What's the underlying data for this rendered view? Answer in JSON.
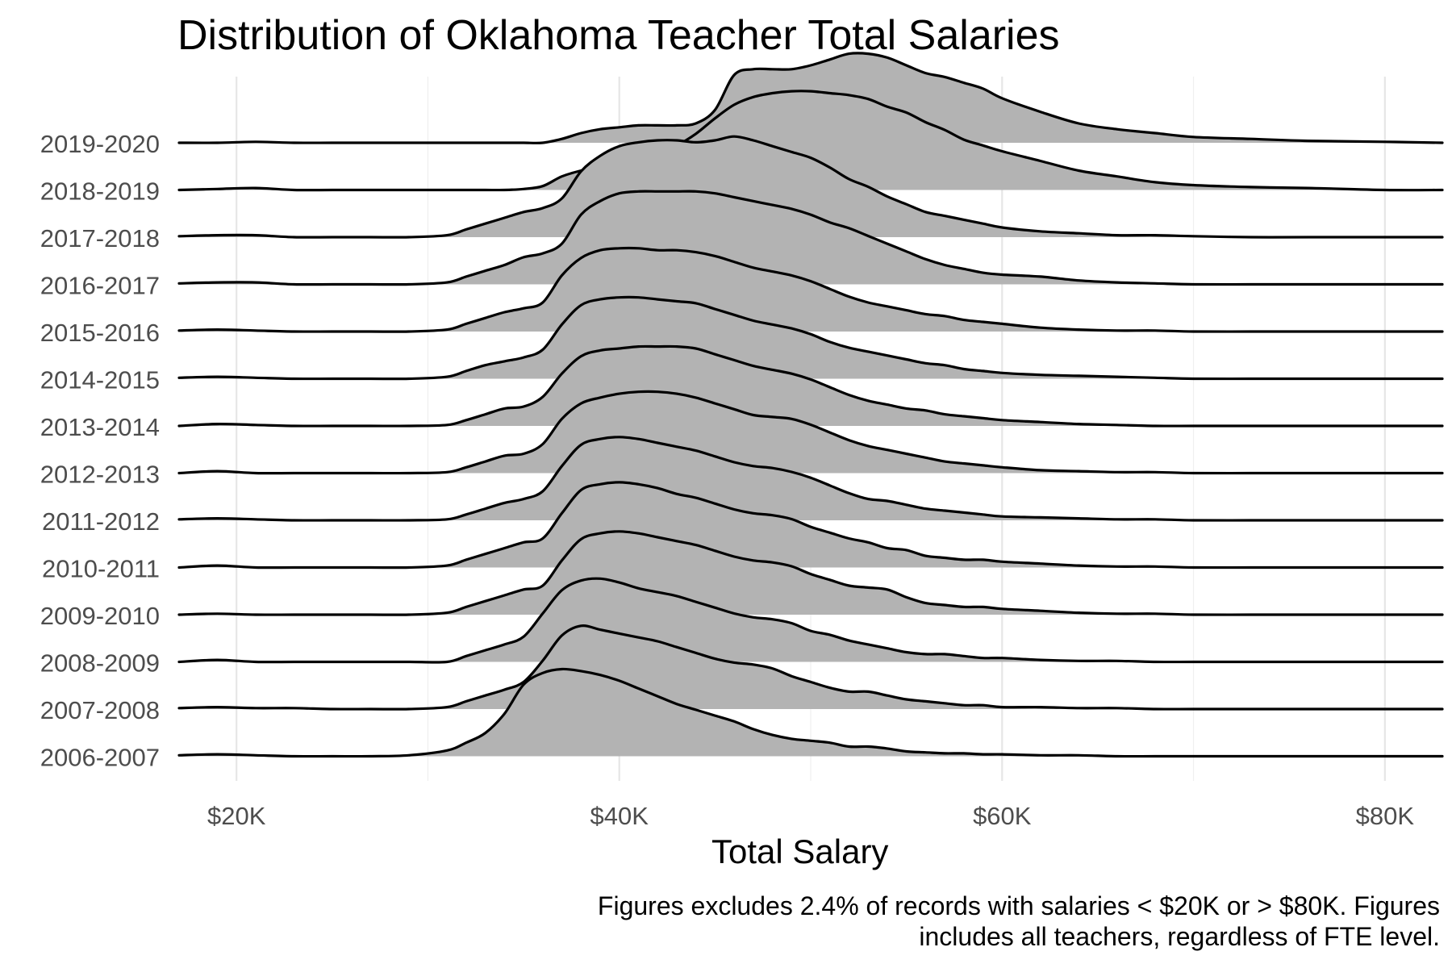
{
  "chart_data": {
    "type": "ridgeline",
    "title": "Distribution of Oklahoma Teacher Total Salaries",
    "xlabel": "Total Salary",
    "ylabel": "",
    "caption_lines": [
      "Figures excludes 2.4% of records with salaries < $20K or > $80K. Figures",
      "includes all teachers, regardless of FTE level."
    ],
    "xlim": [
      17000,
      83000
    ],
    "x_ticks": [
      {
        "value": 20000,
        "label": "$20K"
      },
      {
        "value": 40000,
        "label": "$40K"
      },
      {
        "value": 60000,
        "label": "$60K"
      },
      {
        "value": 80000,
        "label": "$80K"
      }
    ],
    "grid": true,
    "fill_color": "#b3b3b3",
    "line_color": "#000000",
    "density_scale": "relative (tallest ridge = 1.0)",
    "x": [
      17000,
      19000,
      21000,
      23000,
      25000,
      27000,
      29000,
      31000,
      32000,
      33000,
      34000,
      35000,
      36000,
      37000,
      38000,
      39000,
      40000,
      41000,
      42000,
      43000,
      44000,
      45000,
      46000,
      47000,
      48000,
      49000,
      50000,
      51000,
      52000,
      53000,
      54000,
      55000,
      56000,
      57000,
      58000,
      59000,
      60000,
      62000,
      64000,
      66000,
      68000,
      70000,
      73000,
      76000,
      80000,
      83000
    ],
    "series": [
      {
        "name": "2006-2007",
        "values": [
          0.01,
          0.02,
          0.01,
          0.0,
          0.0,
          0.0,
          0.01,
          0.06,
          0.14,
          0.24,
          0.44,
          0.74,
          0.86,
          0.9,
          0.88,
          0.84,
          0.78,
          0.7,
          0.62,
          0.54,
          0.48,
          0.42,
          0.36,
          0.28,
          0.22,
          0.18,
          0.16,
          0.14,
          0.1,
          0.1,
          0.08,
          0.05,
          0.04,
          0.03,
          0.03,
          0.02,
          0.02,
          0.01,
          0.01,
          0.0,
          0.0,
          0.0,
          0.0,
          0.0,
          0.0,
          0.0
        ]
      },
      {
        "name": "2007-2008",
        "values": [
          0.01,
          0.02,
          0.01,
          0.01,
          0.0,
          0.0,
          0.0,
          0.02,
          0.08,
          0.14,
          0.2,
          0.28,
          0.5,
          0.76,
          0.86,
          0.82,
          0.78,
          0.74,
          0.7,
          0.64,
          0.58,
          0.52,
          0.48,
          0.46,
          0.42,
          0.34,
          0.28,
          0.22,
          0.18,
          0.18,
          0.14,
          0.1,
          0.08,
          0.06,
          0.04,
          0.04,
          0.02,
          0.02,
          0.01,
          0.01,
          0.0,
          0.0,
          0.0,
          0.0,
          0.0,
          0.0
        ]
      },
      {
        "name": "2008-2009",
        "values": [
          0.0,
          0.02,
          0.0,
          0.0,
          0.0,
          0.0,
          0.0,
          0.0,
          0.06,
          0.12,
          0.18,
          0.26,
          0.5,
          0.74,
          0.84,
          0.86,
          0.82,
          0.76,
          0.72,
          0.68,
          0.62,
          0.56,
          0.5,
          0.46,
          0.44,
          0.4,
          0.32,
          0.28,
          0.22,
          0.18,
          0.14,
          0.1,
          0.08,
          0.08,
          0.06,
          0.04,
          0.04,
          0.02,
          0.01,
          0.01,
          0.0,
          0.0,
          0.0,
          0.0,
          0.0,
          0.0
        ]
      },
      {
        "name": "2009-2010",
        "values": [
          0.0,
          0.01,
          0.0,
          0.0,
          0.0,
          0.0,
          0.0,
          0.02,
          0.08,
          0.14,
          0.2,
          0.26,
          0.3,
          0.56,
          0.78,
          0.84,
          0.86,
          0.84,
          0.8,
          0.76,
          0.72,
          0.66,
          0.6,
          0.56,
          0.54,
          0.5,
          0.42,
          0.36,
          0.3,
          0.28,
          0.26,
          0.18,
          0.12,
          0.1,
          0.08,
          0.08,
          0.06,
          0.04,
          0.02,
          0.01,
          0.01,
          0.0,
          0.0,
          0.0,
          0.0,
          0.0
        ]
      },
      {
        "name": "2010-2011",
        "values": [
          0.0,
          0.02,
          0.0,
          0.0,
          0.0,
          0.0,
          0.0,
          0.02,
          0.08,
          0.14,
          0.2,
          0.26,
          0.3,
          0.56,
          0.8,
          0.86,
          0.88,
          0.86,
          0.82,
          0.76,
          0.72,
          0.66,
          0.6,
          0.56,
          0.54,
          0.5,
          0.42,
          0.36,
          0.3,
          0.26,
          0.2,
          0.18,
          0.12,
          0.1,
          0.08,
          0.08,
          0.06,
          0.04,
          0.02,
          0.01,
          0.01,
          0.0,
          0.0,
          0.0,
          0.0,
          0.0
        ]
      },
      {
        "name": "2011-2012",
        "values": [
          0.01,
          0.02,
          0.01,
          0.0,
          0.0,
          0.0,
          0.0,
          0.01,
          0.06,
          0.12,
          0.18,
          0.22,
          0.3,
          0.56,
          0.78,
          0.84,
          0.86,
          0.84,
          0.8,
          0.76,
          0.72,
          0.66,
          0.6,
          0.56,
          0.54,
          0.5,
          0.44,
          0.36,
          0.28,
          0.22,
          0.2,
          0.16,
          0.12,
          0.1,
          0.08,
          0.06,
          0.04,
          0.03,
          0.02,
          0.01,
          0.01,
          0.0,
          0.0,
          0.0,
          0.0,
          0.0
        ]
      },
      {
        "name": "2012-2013",
        "values": [
          0.0,
          0.02,
          0.0,
          0.0,
          0.0,
          0.0,
          0.0,
          0.01,
          0.06,
          0.12,
          0.18,
          0.2,
          0.3,
          0.56,
          0.72,
          0.78,
          0.82,
          0.84,
          0.84,
          0.82,
          0.78,
          0.72,
          0.66,
          0.6,
          0.58,
          0.56,
          0.5,
          0.42,
          0.34,
          0.28,
          0.24,
          0.2,
          0.16,
          0.12,
          0.1,
          0.08,
          0.06,
          0.03,
          0.02,
          0.01,
          0.01,
          0.0,
          0.0,
          0.0,
          0.0,
          0.0
        ]
      },
      {
        "name": "2013-2014",
        "values": [
          0.0,
          0.02,
          0.01,
          0.0,
          0.0,
          0.0,
          0.0,
          0.01,
          0.06,
          0.12,
          0.18,
          0.2,
          0.3,
          0.54,
          0.72,
          0.78,
          0.8,
          0.82,
          0.82,
          0.82,
          0.8,
          0.74,
          0.68,
          0.62,
          0.58,
          0.54,
          0.48,
          0.4,
          0.32,
          0.26,
          0.22,
          0.18,
          0.16,
          0.12,
          0.1,
          0.08,
          0.06,
          0.04,
          0.02,
          0.01,
          0.0,
          0.0,
          0.0,
          0.0,
          0.0,
          0.0
        ]
      },
      {
        "name": "2014-2015",
        "values": [
          0.01,
          0.02,
          0.01,
          0.0,
          0.0,
          0.0,
          0.0,
          0.02,
          0.08,
          0.14,
          0.18,
          0.22,
          0.3,
          0.56,
          0.76,
          0.82,
          0.84,
          0.84,
          0.82,
          0.8,
          0.78,
          0.72,
          0.66,
          0.6,
          0.56,
          0.52,
          0.46,
          0.38,
          0.32,
          0.28,
          0.24,
          0.2,
          0.16,
          0.14,
          0.1,
          0.08,
          0.06,
          0.04,
          0.03,
          0.02,
          0.01,
          0.0,
          0.0,
          0.0,
          0.0,
          0.0
        ]
      },
      {
        "name": "2015-2016",
        "values": [
          0.01,
          0.02,
          0.01,
          0.0,
          0.0,
          0.0,
          0.0,
          0.02,
          0.08,
          0.14,
          0.2,
          0.24,
          0.3,
          0.58,
          0.76,
          0.84,
          0.86,
          0.86,
          0.84,
          0.84,
          0.82,
          0.78,
          0.72,
          0.66,
          0.62,
          0.58,
          0.52,
          0.44,
          0.36,
          0.3,
          0.26,
          0.22,
          0.18,
          0.16,
          0.12,
          0.1,
          0.08,
          0.04,
          0.02,
          0.01,
          0.01,
          0.0,
          0.0,
          0.0,
          0.0,
          0.0
        ]
      },
      {
        "name": "2016-2017",
        "values": [
          0.01,
          0.02,
          0.02,
          0.0,
          0.0,
          0.0,
          0.0,
          0.02,
          0.08,
          0.14,
          0.2,
          0.28,
          0.32,
          0.42,
          0.72,
          0.86,
          0.94,
          0.96,
          0.96,
          0.96,
          0.96,
          0.94,
          0.9,
          0.86,
          0.82,
          0.78,
          0.72,
          0.64,
          0.58,
          0.5,
          0.42,
          0.34,
          0.26,
          0.2,
          0.16,
          0.12,
          0.1,
          0.08,
          0.04,
          0.02,
          0.01,
          0.0,
          0.0,
          0.0,
          0.0,
          0.0
        ]
      },
      {
        "name": "2017-2018",
        "values": [
          0.01,
          0.02,
          0.02,
          0.0,
          0.0,
          0.0,
          0.0,
          0.02,
          0.08,
          0.14,
          0.2,
          0.26,
          0.3,
          0.4,
          0.68,
          0.84,
          0.94,
          0.98,
          1.0,
          1.0,
          0.98,
          1.0,
          1.04,
          1.0,
          0.94,
          0.88,
          0.82,
          0.72,
          0.6,
          0.52,
          0.42,
          0.34,
          0.26,
          0.22,
          0.18,
          0.14,
          0.1,
          0.06,
          0.04,
          0.02,
          0.02,
          0.01,
          0.0,
          0.0,
          0.0,
          0.0
        ]
      },
      {
        "name": "2018-2019",
        "values": [
          0.0,
          0.01,
          0.02,
          0.0,
          0.0,
          0.0,
          0.0,
          0.0,
          0.0,
          0.0,
          0.0,
          0.01,
          0.04,
          0.14,
          0.2,
          0.24,
          0.28,
          0.32,
          0.38,
          0.46,
          0.58,
          0.74,
          0.88,
          0.96,
          1.0,
          1.02,
          1.02,
          1.0,
          0.98,
          0.94,
          0.86,
          0.8,
          0.7,
          0.62,
          0.52,
          0.46,
          0.4,
          0.3,
          0.2,
          0.14,
          0.08,
          0.05,
          0.03,
          0.02,
          0.0,
          0.0
        ]
      },
      {
        "name": "2019-2020",
        "values": [
          0.0,
          0.0,
          0.01,
          0.0,
          0.0,
          0.0,
          0.0,
          0.0,
          0.0,
          0.0,
          0.0,
          0.0,
          0.0,
          0.04,
          0.1,
          0.14,
          0.16,
          0.18,
          0.18,
          0.18,
          0.2,
          0.34,
          0.7,
          0.76,
          0.76,
          0.76,
          0.8,
          0.86,
          0.92,
          0.92,
          0.88,
          0.8,
          0.72,
          0.68,
          0.62,
          0.56,
          0.46,
          0.32,
          0.2,
          0.14,
          0.1,
          0.06,
          0.04,
          0.02,
          0.01,
          0.0
        ]
      }
    ]
  }
}
